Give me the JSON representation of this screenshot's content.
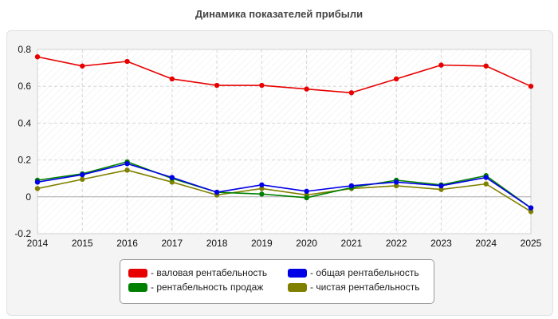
{
  "chart_data": {
    "type": "line",
    "title": "Динамика показателей прибыли",
    "xlabel": "",
    "ylabel": "",
    "categories": [
      "2014",
      "2015",
      "2016",
      "2017",
      "2018",
      "2019",
      "2020",
      "2021",
      "2022",
      "2023",
      "2024",
      "2025"
    ],
    "ylim": [
      -0.2,
      0.8
    ],
    "yticks": [
      -0.2,
      0,
      0.2,
      0.4,
      0.6,
      0.8
    ],
    "ytick_labels": [
      "-0.2",
      "0",
      "0.2",
      "0.4",
      "0.6",
      "0.8"
    ],
    "grid": true,
    "legend_position": "bottom",
    "series": [
      {
        "name": "- валовая рентабельность",
        "color": "#e80000",
        "values": [
          0.76,
          0.71,
          0.735,
          0.64,
          0.605,
          0.605,
          0.585,
          0.565,
          0.64,
          0.715,
          0.71,
          0.6
        ]
      },
      {
        "name": "- общая рентабельность",
        "color": "#0000e6",
        "values": [
          0.08,
          0.12,
          0.18,
          0.105,
          0.025,
          0.065,
          0.03,
          0.06,
          0.08,
          0.06,
          0.105,
          -0.06
        ]
      },
      {
        "name": "- рентабельность продаж",
        "color": "#008000",
        "values": [
          0.09,
          0.125,
          0.19,
          0.1,
          0.025,
          0.015,
          -0.005,
          0.05,
          0.09,
          0.065,
          0.115,
          -0.06
        ]
      },
      {
        "name": "- чистая рентабельность",
        "color": "#808000",
        "values": [
          0.045,
          0.095,
          0.145,
          0.08,
          0.01,
          0.045,
          0.01,
          0.045,
          0.06,
          0.04,
          0.07,
          -0.08
        ]
      }
    ]
  }
}
